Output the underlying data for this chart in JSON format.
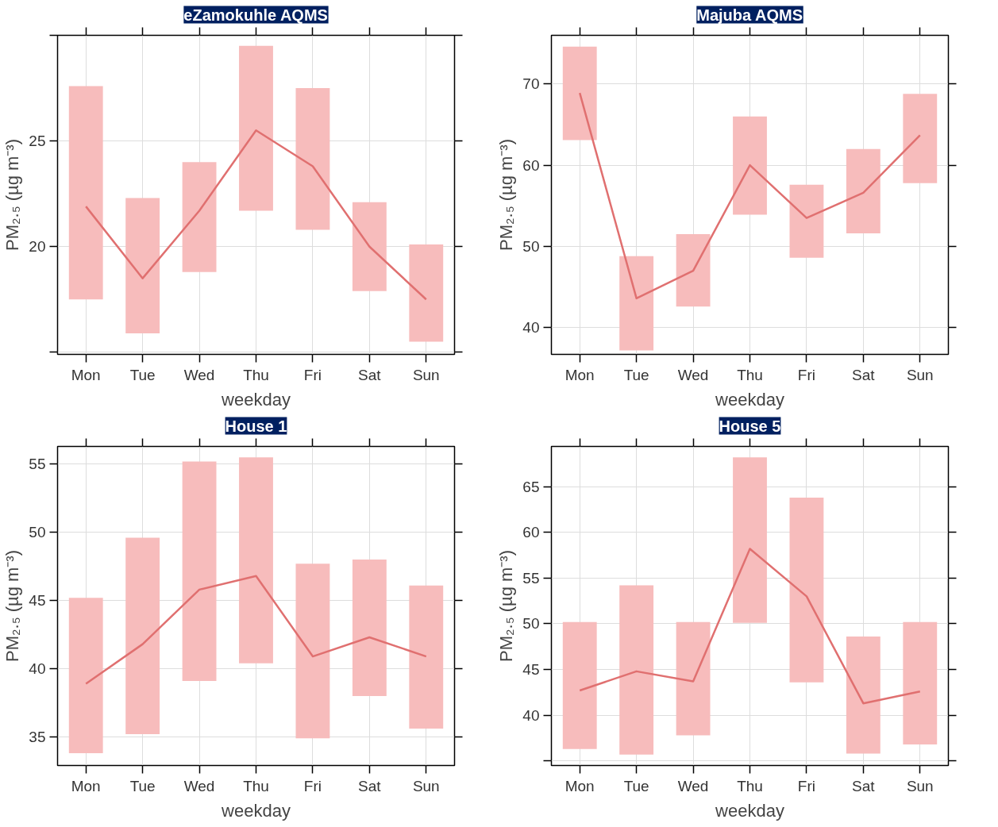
{
  "chart_data": [
    {
      "type": "line",
      "title": "eZamokuhle AQMS",
      "xlabel": "weekday",
      "ylabel": "PM₂.₅ (µg m⁻³)",
      "categories": [
        "Mon",
        "Tue",
        "Wed",
        "Thu",
        "Fri",
        "Sat",
        "Sun"
      ],
      "ylim": [
        14.9,
        30.0
      ],
      "yticks": [
        {
          "value": 15,
          "label": null
        },
        20,
        25,
        {
          "value": 30,
          "label": null
        }
      ],
      "grid": true,
      "series": [
        {
          "type": "bar",
          "color": "#f7bcbc",
          "base": [
            17.5,
            15.9,
            18.8,
            21.7,
            20.8,
            17.9,
            15.5
          ],
          "values": [
            10.1,
            6.4,
            5.2,
            7.8,
            6.7,
            4.2,
            4.6
          ]
        },
        {
          "color": "#e07070",
          "values": [
            21.9,
            18.5,
            21.7,
            25.5,
            23.8,
            20.0,
            17.5
          ]
        }
      ]
    },
    {
      "type": "line",
      "title": "Majuba AQMS",
      "xlabel": "weekday",
      "ylabel": "PM₂.₅ (µg m⁻³)",
      "categories": [
        "Mon",
        "Tue",
        "Wed",
        "Thu",
        "Fri",
        "Sat",
        "Sun"
      ],
      "ylim": [
        36.7,
        76.0
      ],
      "yticks": [
        40,
        50,
        60,
        70
      ],
      "grid": true,
      "series": [
        {
          "type": "bar",
          "color": "#f7bcbc",
          "base": [
            63.1,
            37.2,
            42.6,
            53.9,
            48.6,
            51.6,
            57.8
          ],
          "values": [
            11.5,
            11.6,
            8.9,
            12.1,
            9.0,
            10.4,
            11.0
          ]
        },
        {
          "color": "#e07070",
          "values": [
            68.9,
            43.6,
            47.0,
            60.0,
            53.5,
            56.6,
            63.7
          ]
        }
      ]
    },
    {
      "type": "line",
      "title": "House 1",
      "xlabel": "weekday",
      "ylabel": "PM₂.₅ (µg m⁻³)",
      "categories": [
        "Mon",
        "Tue",
        "Wed",
        "Thu",
        "Fri",
        "Sat",
        "Sun"
      ],
      "ylim": [
        32.9,
        56.3
      ],
      "yticks": [
        35,
        40,
        45,
        50,
        55
      ],
      "grid": true,
      "series": [
        {
          "type": "bar",
          "color": "#f7bcbc",
          "base": [
            33.8,
            35.2,
            39.1,
            40.4,
            34.9,
            38.0,
            35.6
          ],
          "values": [
            11.4,
            14.4,
            16.1,
            15.1,
            12.8,
            10.0,
            10.5
          ]
        },
        {
          "color": "#e07070",
          "values": [
            38.9,
            41.8,
            45.8,
            46.8,
            40.9,
            42.3,
            40.9
          ]
        }
      ]
    },
    {
      "type": "line",
      "title": "House 5",
      "xlabel": "weekday",
      "ylabel": "PM₂.₅ (µg m⁻³)",
      "categories": [
        "Mon",
        "Tue",
        "Wed",
        "Thu",
        "Fri",
        "Sat",
        "Sun"
      ],
      "ylim": [
        34.5,
        69.4
      ],
      "yticks": [
        {
          "value": 35,
          "label": null
        },
        40,
        45,
        50,
        55,
        60,
        65
      ],
      "grid": true,
      "series": [
        {
          "type": "bar",
          "color": "#f7bcbc",
          "base": [
            36.3,
            35.7,
            37.8,
            50.1,
            43.6,
            35.8,
            36.8
          ],
          "values": [
            13.9,
            18.5,
            12.4,
            18.1,
            20.2,
            12.8,
            13.4
          ]
        },
        {
          "color": "#e07070",
          "values": [
            42.7,
            44.8,
            43.7,
            58.2,
            53.0,
            41.3,
            42.6
          ]
        }
      ]
    }
  ]
}
